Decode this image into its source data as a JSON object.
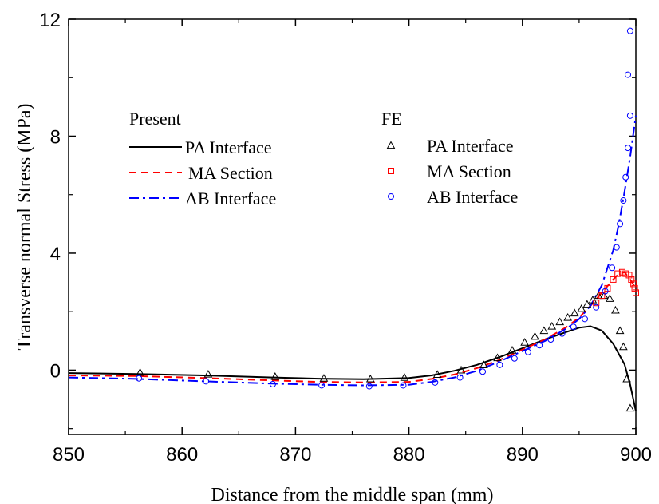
{
  "chart_data": {
    "type": "line",
    "title": "",
    "xlabel": "Distance from the middle span (mm)",
    "ylabel": "Transverse normal Stress (MPa)",
    "xlim": [
      850,
      900
    ],
    "ylim": [
      -2.2,
      12
    ],
    "xticks": [
      850,
      860,
      870,
      880,
      890,
      900
    ],
    "yticks": [
      0,
      4,
      8,
      12
    ],
    "grid": false,
    "legend": {
      "placement": "upper-left",
      "groups": [
        {
          "title": "Present",
          "entries": [
            "PA Interface",
            "MA Section",
            "AB Interface"
          ]
        },
        {
          "title": "FE",
          "entries": [
            "PA Interface",
            "MA Section",
            "AB Interface"
          ]
        }
      ]
    },
    "series": [
      {
        "name": "PA Interface",
        "group": "Present",
        "style": "solid",
        "color": "#000000",
        "x": [
          850,
          856,
          862,
          868,
          872,
          876,
          880,
          882,
          884,
          886,
          888,
          890,
          892,
          894,
          895,
          896,
          897,
          898,
          899,
          899.5,
          900
        ],
        "y": [
          -0.1,
          -0.13,
          -0.18,
          -0.25,
          -0.29,
          -0.31,
          -0.27,
          -0.18,
          -0.02,
          0.18,
          0.45,
          0.75,
          1.05,
          1.32,
          1.45,
          1.5,
          1.35,
          0.9,
          0.2,
          -0.5,
          -1.4
        ]
      },
      {
        "name": "MA Section",
        "group": "Present",
        "style": "dashed",
        "color": "#ff0000",
        "x": [
          850,
          856,
          862,
          868,
          872,
          876,
          880,
          882,
          884,
          886,
          888,
          890,
          892,
          894,
          895,
          896,
          897,
          898,
          898.5,
          899,
          899.5,
          900
        ],
        "y": [
          -0.18,
          -0.2,
          -0.27,
          -0.35,
          -0.4,
          -0.42,
          -0.4,
          -0.3,
          -0.15,
          0.07,
          0.35,
          0.7,
          1.05,
          1.5,
          1.8,
          2.2,
          2.65,
          3.1,
          3.3,
          3.35,
          3.1,
          2.8
        ]
      },
      {
        "name": "AB Interface",
        "group": "Present",
        "style": "dash-dot",
        "color": "#0000ff",
        "x": [
          850,
          856,
          862,
          868,
          872,
          876,
          880,
          882,
          884,
          886,
          888,
          890,
          892,
          894,
          895,
          896,
          897,
          898,
          898.5,
          899,
          899.5,
          900
        ],
        "y": [
          -0.25,
          -0.3,
          -0.38,
          -0.46,
          -0.5,
          -0.52,
          -0.5,
          -0.4,
          -0.25,
          -0.02,
          0.3,
          0.65,
          1.0,
          1.45,
          1.75,
          2.2,
          2.9,
          4.1,
          5.0,
          6.1,
          7.3,
          8.7
        ]
      },
      {
        "name": "PA Interface",
        "group": "FE",
        "marker": "triangle",
        "color": "#000000",
        "x": [
          856.3,
          862.3,
          868.2,
          872.5,
          876.6,
          879.6,
          882.5,
          884.6,
          886.6,
          887.8,
          889.1,
          890.2,
          891.1,
          891.9,
          892.6,
          893.3,
          894.0,
          894.6,
          895.2,
          895.7,
          896.2,
          896.7,
          897.2,
          897.7,
          898.2,
          898.6,
          898.9,
          899.2,
          899.5
        ],
        "y": [
          -0.08,
          -0.14,
          -0.22,
          -0.28,
          -0.3,
          -0.25,
          -0.15,
          0.0,
          0.18,
          0.42,
          0.68,
          0.95,
          1.15,
          1.35,
          1.5,
          1.65,
          1.8,
          1.95,
          2.1,
          2.25,
          2.4,
          2.55,
          2.55,
          2.45,
          2.05,
          1.35,
          0.8,
          -0.3,
          -1.3
        ]
      },
      {
        "name": "MA Section",
        "group": "FE",
        "marker": "square",
        "color": "#ff0000",
        "x": [
          896.5,
          897.0,
          897.5,
          898.0,
          898.4,
          898.8,
          899.1,
          899.4,
          899.6,
          899.8,
          899.9,
          900.0
        ],
        "y": [
          2.3,
          2.55,
          2.8,
          3.1,
          3.3,
          3.35,
          3.3,
          3.25,
          3.1,
          2.95,
          2.8,
          2.65
        ]
      },
      {
        "name": "AB Interface",
        "group": "FE",
        "marker": "circle",
        "color": "#0000ff",
        "x": [
          856.2,
          862.1,
          868.0,
          872.3,
          876.5,
          879.5,
          882.3,
          884.5,
          886.5,
          888.0,
          889.3,
          890.5,
          891.5,
          892.5,
          893.5,
          894.5,
          895.5,
          896.5,
          897.3,
          897.9,
          898.3,
          898.6,
          898.9,
          899.1,
          899.3,
          899.5
        ],
        "y": [
          -0.28,
          -0.38,
          -0.48,
          -0.52,
          -0.55,
          -0.52,
          -0.42,
          -0.25,
          -0.05,
          0.18,
          0.4,
          0.62,
          0.85,
          1.05,
          1.25,
          1.48,
          1.75,
          2.15,
          2.7,
          3.5,
          4.2,
          5.0,
          5.8,
          6.6,
          7.6,
          8.7
        ]
      }
    ],
    "extra_points": {
      "series": "AB Interface",
      "group": "FE",
      "x": [
        899.3,
        899.5
      ],
      "y": [
        10.1,
        11.6
      ]
    }
  }
}
